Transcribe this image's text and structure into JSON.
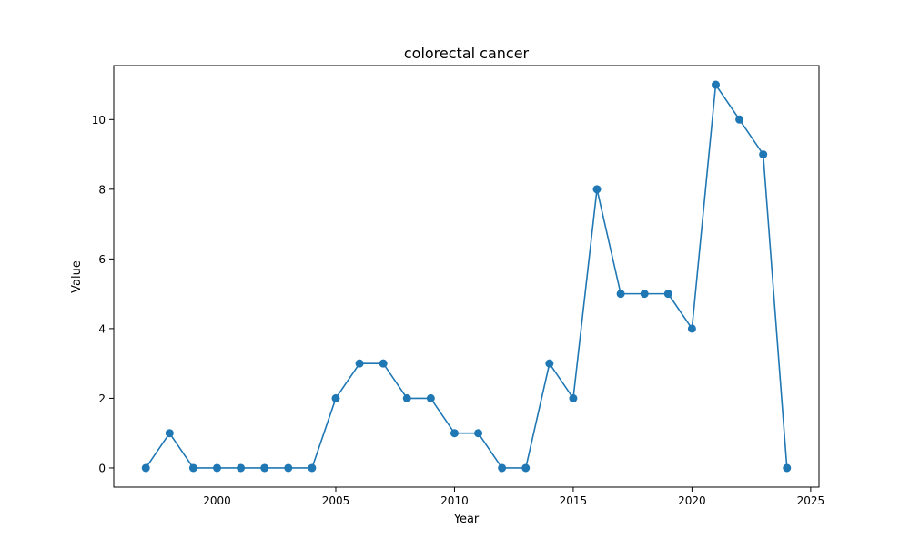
{
  "chart_data": {
    "type": "line",
    "title": "colorectal cancer",
    "xlabel": "Year",
    "ylabel": "Value",
    "x": [
      1997,
      1998,
      1999,
      2000,
      2001,
      2002,
      2003,
      2004,
      2005,
      2006,
      2007,
      2008,
      2009,
      2010,
      2011,
      2012,
      2013,
      2014,
      2015,
      2016,
      2017,
      2018,
      2019,
      2020,
      2021,
      2022,
      2023,
      2024
    ],
    "series": [
      {
        "values": [
          0,
          1,
          0,
          0,
          0,
          0,
          0,
          0,
          2,
          3,
          3,
          2,
          2,
          1,
          1,
          0,
          0,
          3,
          2,
          8,
          5,
          5,
          5,
          4,
          11,
          10,
          9,
          0
        ],
        "color": "#1f77b4",
        "marker": "circle"
      }
    ],
    "xlim": [
      1995.65,
      2025.35
    ],
    "ylim": [
      -0.55,
      11.55
    ],
    "xticks": [
      2000,
      2005,
      2010,
      2015,
      2020,
      2025
    ],
    "xtick_labels": [
      "2000",
      "2005",
      "2010",
      "2015",
      "2020",
      "2025"
    ],
    "yticks": [
      0,
      2,
      4,
      6,
      8,
      10
    ],
    "ytick_labels": [
      "0",
      "2",
      "4",
      "6",
      "8",
      "10"
    ],
    "grid": false,
    "legend": "none"
  }
}
